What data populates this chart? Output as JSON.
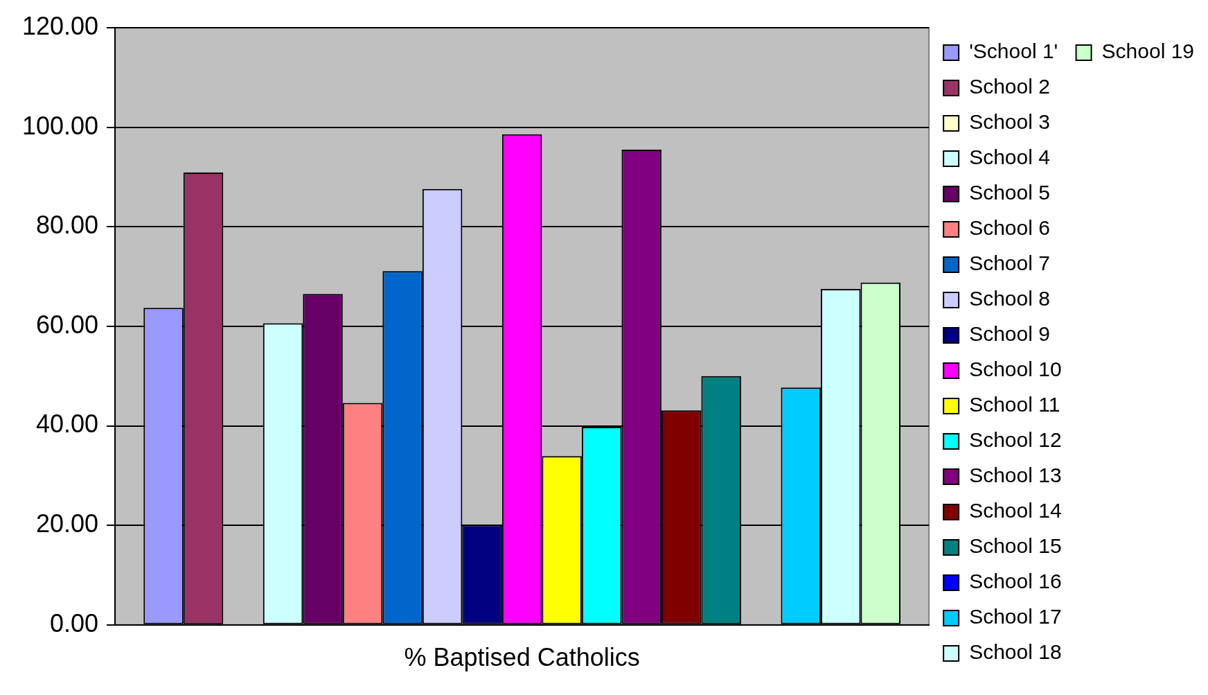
{
  "chart_data": {
    "type": "bar",
    "categories": [
      "% Baptised Catholics"
    ],
    "series": [
      {
        "name": "'School 1'",
        "color": "#9999ff",
        "values": [
          63.7
        ]
      },
      {
        "name": "School 2",
        "color": "#993366",
        "values": [
          90.9
        ]
      },
      {
        "name": "School 3",
        "color": "#ffffcc",
        "values": [
          0
        ]
      },
      {
        "name": "School 4",
        "color": "#ccffff",
        "values": [
          60.6
        ]
      },
      {
        "name": "School 5",
        "color": "#660066",
        "values": [
          66.5
        ]
      },
      {
        "name": "School 6",
        "color": "#ff8080",
        "values": [
          44.6
        ]
      },
      {
        "name": "School 7",
        "color": "#0066cc",
        "values": [
          71.1
        ]
      },
      {
        "name": "School 8",
        "color": "#ccccff",
        "values": [
          87.6
        ]
      },
      {
        "name": "School 9",
        "color": "#000080",
        "values": [
          20.1
        ]
      },
      {
        "name": "School 10",
        "color": "#ff00ff",
        "values": [
          98.6
        ]
      },
      {
        "name": "School 11",
        "color": "#ffff00",
        "values": [
          33.9
        ]
      },
      {
        "name": "School 12",
        "color": "#00ffff",
        "values": [
          39.8
        ]
      },
      {
        "name": "School 13",
        "color": "#800080",
        "values": [
          95.5
        ]
      },
      {
        "name": "School 14",
        "color": "#800000",
        "values": [
          43.1
        ]
      },
      {
        "name": "School 15",
        "color": "#008080",
        "values": [
          50.0
        ]
      },
      {
        "name": "School 16",
        "color": "#0000ff",
        "values": [
          0
        ]
      },
      {
        "name": "School 17",
        "color": "#00ccff",
        "values": [
          47.7
        ]
      },
      {
        "name": "School 18",
        "color": "#ccffff",
        "values": [
          67.5
        ]
      },
      {
        "name": "School 19",
        "color": "#ccffcc",
        "values": [
          68.8
        ]
      }
    ],
    "ylim": [
      0,
      120
    ],
    "yticks": [
      {
        "value": 0,
        "label": "0.00"
      },
      {
        "value": 20,
        "label": "20.00"
      },
      {
        "value": 40,
        "label": "40.00"
      },
      {
        "value": 60,
        "label": "60.00"
      },
      {
        "value": 80,
        "label": "80.00"
      },
      {
        "value": 100,
        "label": "100.00"
      },
      {
        "value": 120,
        "label": "120.00"
      }
    ],
    "grid": "y",
    "legend": "right"
  }
}
